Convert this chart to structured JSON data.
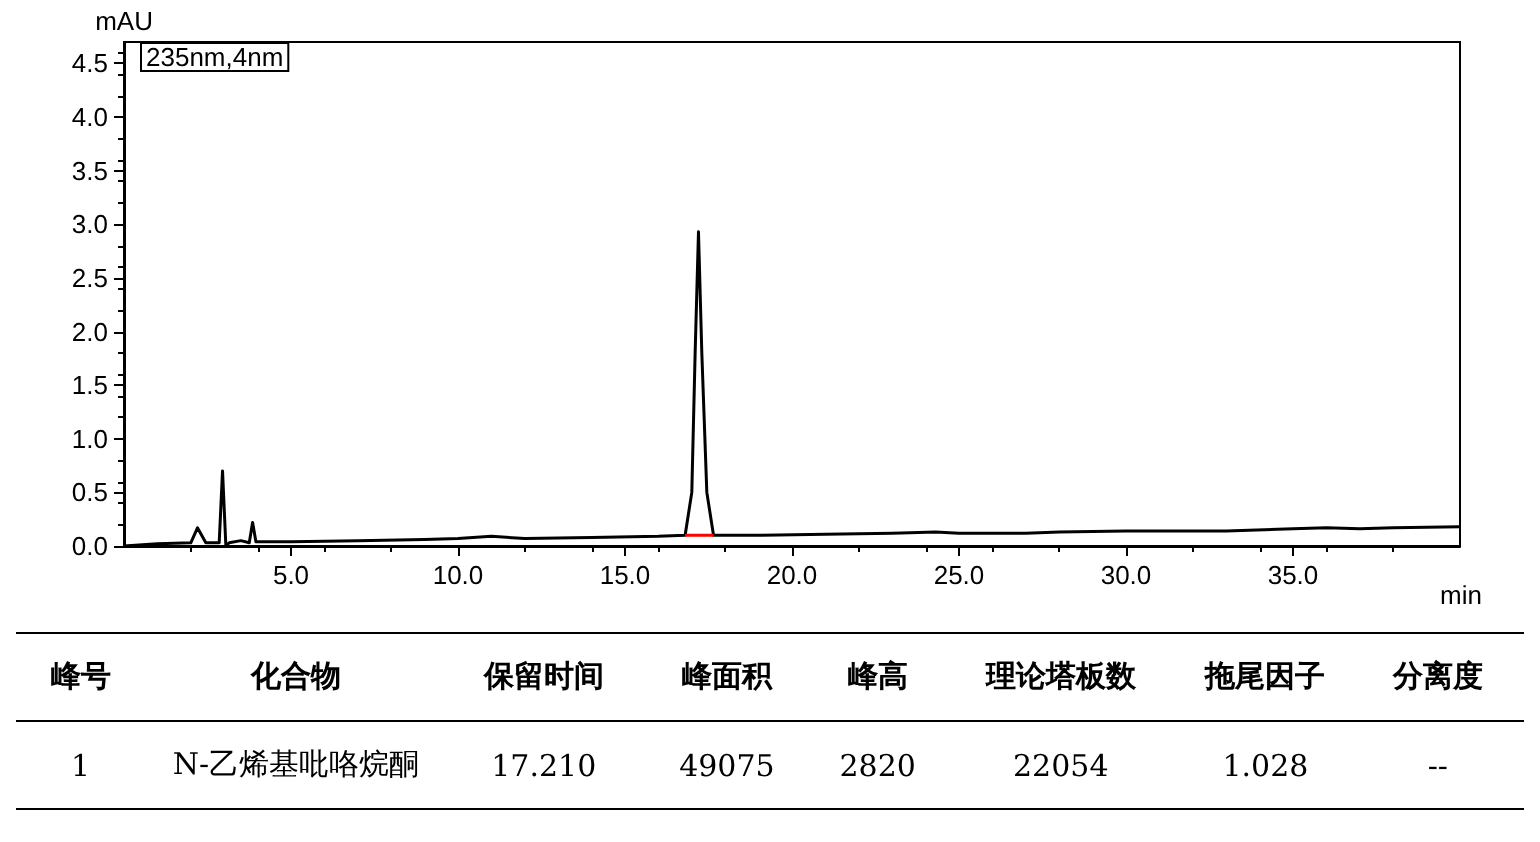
{
  "chart_data": [
    {
      "type": "line",
      "xlabel": "min",
      "ylabel": "mAU",
      "annotations": [
        "235nm,4nm"
      ],
      "grid": false,
      "marker": "none",
      "line_style": "solid",
      "xlim": [
        0,
        40
      ],
      "xticks": [
        {
          "value": 5,
          "label": "5.0"
        },
        {
          "value": 10,
          "label": "10.0"
        },
        {
          "value": 15,
          "label": "15.0"
        },
        {
          "value": 20,
          "label": "20.0"
        },
        {
          "value": 25,
          "label": "25.0"
        },
        {
          "value": 30,
          "label": "30.0"
        },
        {
          "value": 35,
          "label": "35.0"
        }
      ],
      "ylim": [
        0,
        4.7
      ],
      "yticks": [
        {
          "value": 0,
          "label": "0.0"
        },
        0.5,
        {
          "value": 1,
          "label": "1.0"
        },
        1.5,
        {
          "value": 2,
          "label": "2.0"
        },
        2.5,
        {
          "value": 3,
          "label": "3.0"
        },
        3.5,
        {
          "value": 4,
          "label": "4.0"
        },
        4.5
      ],
      "series": [
        {
          "color": "#000000",
          "x": [
            0,
            1,
            2,
            2.2,
            2.45,
            2.85,
            2.95,
            3.05,
            3.15,
            3.5,
            3.75,
            3.85,
            3.95,
            5,
            7,
            9,
            10,
            11,
            12,
            14,
            16,
            16.8,
            17,
            17.1,
            17.2,
            17.3,
            17.45,
            17.65,
            19,
            21,
            23,
            24.3,
            25,
            27,
            28,
            30,
            33,
            35,
            36,
            37,
            38,
            40
          ],
          "values": [
            0,
            0.02,
            0.03,
            0.17,
            0.03,
            0.03,
            0.7,
            0,
            0.03,
            0.05,
            0.03,
            0.22,
            0.04,
            0.04,
            0.05,
            0.06,
            0.07,
            0.09,
            0.07,
            0.08,
            0.09,
            0.1,
            0.5,
            1.8,
            2.93,
            1.8,
            0.5,
            0.1,
            0.1,
            0.11,
            0.12,
            0.13,
            0.12,
            0.12,
            0.13,
            0.14,
            0.14,
            0.16,
            0.17,
            0.16,
            0.17,
            0.18
          ]
        },
        {
          "color": "#ff0000",
          "x": [
            16.8,
            17.65
          ],
          "values": [
            0.1,
            0.1
          ]
        }
      ]
    },
    {
      "type": "other",
      "annotations": [
        "峰号",
        "化合物",
        "保留时间",
        "峰面积",
        "峰高",
        "理论塔板数",
        "拖尾因子",
        "分离度",
        "1",
        "N-乙烯基吡咯烷酮",
        "17.210",
        "49075",
        "2820",
        "22054",
        "1.028",
        "--"
      ]
    }
  ]
}
